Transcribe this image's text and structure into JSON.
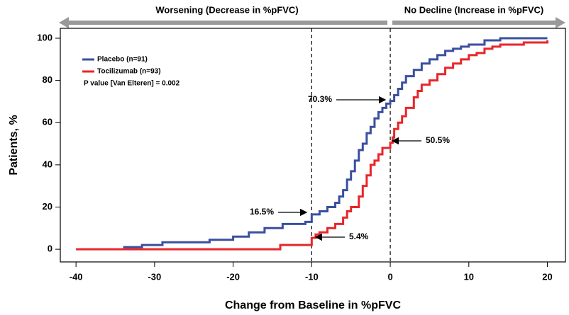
{
  "chart_data": {
    "type": "step",
    "x_label": "Change from Baseline in %pFVC",
    "y_label": "Patients, %",
    "header_left": "Worsening (Decrease in %pFVC)",
    "header_right": "No Decline (Increase in %pFVC)",
    "legend_note": "P value [Van Elteren] = 0.002",
    "annotations": [
      "70.3%",
      "50.5%",
      "16.5%",
      "5.4%"
    ],
    "vlines": [
      -10,
      0
    ],
    "xlim": [
      -42,
      22.3
    ],
    "ylim": [
      -6,
      104.7
    ],
    "xticks": [
      -40,
      -30,
      -20,
      -10,
      0,
      10,
      20
    ],
    "yticks": [
      0,
      20,
      40,
      60,
      80,
      100
    ],
    "series": [
      {
        "name": "Placebo (n=91)",
        "color": "#3a4fa0",
        "x": [
          -34,
          -31.6,
          -29,
          -23,
          -20,
          -18,
          -16,
          -13.7,
          -10.8,
          -10,
          -9,
          -8,
          -7,
          -6.5,
          -6,
          -5.5,
          -5,
          -4.5,
          -4,
          -3.5,
          -3,
          -2.5,
          -2,
          -1.5,
          -1,
          -0.5,
          0,
          0.5,
          1,
          1.5,
          2,
          3,
          4,
          5,
          6,
          7,
          8,
          9,
          10,
          12,
          14,
          20
        ],
        "values": [
          1,
          2,
          3.3,
          4.5,
          6,
          8,
          10,
          12,
          13,
          16.5,
          18,
          20,
          22,
          25,
          28,
          33,
          37,
          42,
          47,
          50,
          55,
          58,
          62,
          65,
          67,
          69,
          70.3,
          73,
          76,
          79,
          82,
          85,
          88,
          90,
          92,
          94,
          95,
          96,
          97,
          99,
          100,
          100
        ]
      },
      {
        "name": "Tocilizumab (n=93)",
        "color": "#e8262a",
        "x": [
          -40,
          -14,
          -10.5,
          -10,
          -9.5,
          -9,
          -8,
          -7,
          -6,
          -5.5,
          -5,
          -4,
          -3.5,
          -3,
          -2.5,
          -2,
          -1.5,
          -1,
          0,
          0.3,
          0.5,
          1,
          1.5,
          2,
          3,
          3.5,
          4,
          5,
          6,
          7,
          8,
          9,
          10,
          11,
          12,
          13,
          14,
          17,
          20
        ],
        "values": [
          0,
          2,
          2,
          5.4,
          7,
          8,
          10,
          12,
          15,
          18,
          20,
          25,
          30,
          35,
          40,
          42,
          45,
          48,
          50.5,
          53,
          57,
          60,
          63,
          67,
          72,
          75,
          78,
          80,
          83,
          86,
          88,
          90,
          92,
          93,
          95,
          96,
          97,
          98,
          99
        ]
      }
    ]
  }
}
